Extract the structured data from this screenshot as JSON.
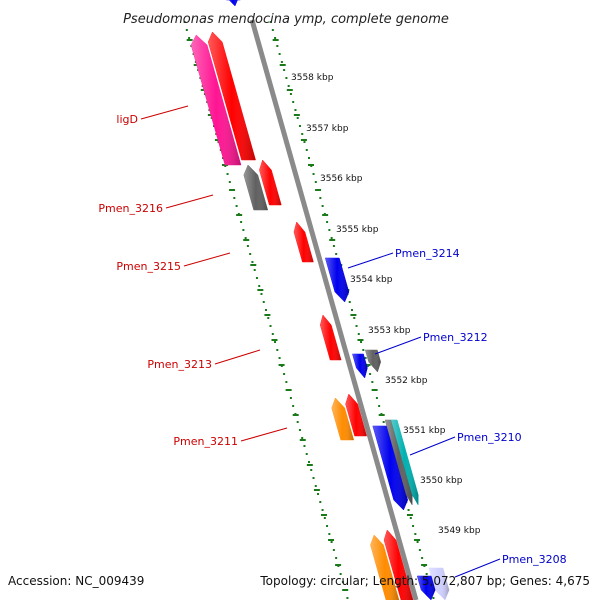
{
  "title": "Pseudomonas mendocina ymp, complete genome",
  "footer": {
    "accession": "Accession: NC_009439",
    "topology": "Topology: circular; Length: 5,072,807 bp; Genes: 4,675"
  },
  "colors": {
    "pink": "#ff1493",
    "red": "#ff0000",
    "blue": "#0000ee",
    "orange": "#ff8c00",
    "grey": "#606060",
    "teal": "#00b0b0",
    "light": "#d0d0ff",
    "ruler": "#1a7a1a",
    "backbone": "#8a8a8a",
    "label_left": "#cc0000",
    "label_right": "#0000cc"
  },
  "scale_labels": [
    "3558 kbp",
    "3557 kbp",
    "3556 kbp",
    "3555 kbp",
    "3554 kbp",
    "3553 kbp",
    "3552 kbp",
    "3551 kbp",
    "3550 kbp",
    "3549 kbp"
  ],
  "genes_left": [
    {
      "name": "ligD",
      "color": "pink"
    },
    {
      "name": "Pmen_3216",
      "color": "grey"
    },
    {
      "name": "Pmen_3215",
      "color": "red"
    },
    {
      "name": "Pmen_3213",
      "color": "red"
    },
    {
      "name": "Pmen_3211",
      "color": "orange"
    }
  ],
  "genes_right": [
    {
      "name": "Pmen_3214",
      "color": "blue"
    },
    {
      "name": "Pmen_3212",
      "color": "blue"
    },
    {
      "name": "Pmen_3210",
      "color": "blue"
    },
    {
      "name": "Pmen_3208",
      "color": "light"
    }
  ]
}
